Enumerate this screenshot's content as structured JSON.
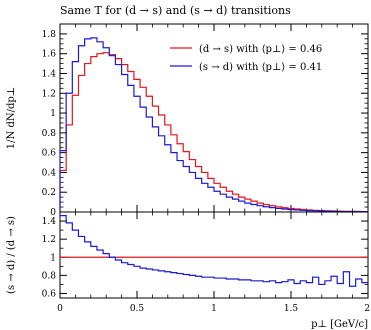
{
  "chart_data": [
    {
      "type": "line",
      "title": "Same T for (d → s) and (s → d) transitions",
      "ylabel": "1/N dN/dp⊥",
      "xlim": [
        0,
        2
      ],
      "ylim": [
        0,
        1.9
      ],
      "yticks": [
        "0",
        "0.2",
        "0.4",
        "0.6",
        "0.8",
        "1",
        "1.2",
        "1.4",
        "1.6",
        "1.8"
      ],
      "legend_position": "top-right",
      "grid": false,
      "x": [
        0.02,
        0.06,
        0.1,
        0.14,
        0.18,
        0.22,
        0.26,
        0.3,
        0.34,
        0.38,
        0.42,
        0.46,
        0.5,
        0.54,
        0.58,
        0.62,
        0.66,
        0.7,
        0.74,
        0.78,
        0.82,
        0.86,
        0.9,
        0.94,
        0.98,
        1.02,
        1.06,
        1.1,
        1.14,
        1.18,
        1.22,
        1.26,
        1.3,
        1.34,
        1.38,
        1.42,
        1.46,
        1.5,
        1.54,
        1.58,
        1.62,
        1.66,
        1.7,
        1.74,
        1.78,
        1.82,
        1.86,
        1.9,
        1.94,
        1.98
      ],
      "series": [
        {
          "name": "(d → s) with ⟨p⊥⟩ = 0.46",
          "color": "#e8141e",
          "values": [
            0.42,
            0.88,
            1.18,
            1.38,
            1.5,
            1.57,
            1.6,
            1.61,
            1.59,
            1.55,
            1.49,
            1.42,
            1.34,
            1.26,
            1.17,
            1.07,
            0.98,
            0.88,
            0.78,
            0.69,
            0.61,
            0.53,
            0.46,
            0.4,
            0.34,
            0.29,
            0.25,
            0.21,
            0.18,
            0.15,
            0.13,
            0.11,
            0.09,
            0.075,
            0.063,
            0.052,
            0.043,
            0.036,
            0.03,
            0.025,
            0.021,
            0.017,
            0.014,
            0.012,
            0.01,
            0.008,
            0.007,
            0.006,
            0.005,
            0.004
          ]
        },
        {
          "name": "(s → d) with ⟨p⊥⟩ = 0.41",
          "color": "#1a1ad6",
          "values": [
            0.62,
            1.2,
            1.52,
            1.68,
            1.75,
            1.76,
            1.72,
            1.66,
            1.58,
            1.49,
            1.39,
            1.28,
            1.17,
            1.06,
            0.96,
            0.86,
            0.77,
            0.68,
            0.6,
            0.52,
            0.46,
            0.4,
            0.34,
            0.29,
            0.25,
            0.21,
            0.18,
            0.15,
            0.13,
            0.11,
            0.09,
            0.076,
            0.064,
            0.053,
            0.044,
            0.036,
            0.03,
            0.025,
            0.021,
            0.017,
            0.014,
            0.012,
            0.01,
            0.008,
            0.0065,
            0.0053,
            0.0043,
            0.0035,
            0.0028,
            0.0022
          ]
        }
      ]
    },
    {
      "type": "line",
      "xlabel": "p⊥ [GeV/c]",
      "ylabel": "(s → d) / (d → s)",
      "xlim": [
        0,
        2
      ],
      "ylim": [
        0.55,
        1.5
      ],
      "xticks": [
        "0",
        "0.5",
        "1",
        "1.5",
        "2"
      ],
      "yticks": [
        "0.6",
        "0.8",
        "1",
        "1.2",
        "1.4"
      ],
      "reference_line": 1,
      "reference_color": "#e8141e",
      "x": [
        0.02,
        0.06,
        0.1,
        0.14,
        0.18,
        0.22,
        0.26,
        0.3,
        0.34,
        0.38,
        0.42,
        0.46,
        0.5,
        0.54,
        0.58,
        0.62,
        0.66,
        0.7,
        0.74,
        0.78,
        0.82,
        0.86,
        0.9,
        0.94,
        0.98,
        1.02,
        1.06,
        1.1,
        1.14,
        1.18,
        1.22,
        1.26,
        1.3,
        1.34,
        1.38,
        1.42,
        1.46,
        1.5,
        1.54,
        1.58,
        1.62,
        1.66,
        1.7,
        1.74,
        1.78,
        1.82,
        1.86,
        1.9,
        1.94,
        1.98
      ],
      "series": [
        {
          "name": "ratio",
          "color": "#1a1ad6",
          "values": [
            1.46,
            1.38,
            1.3,
            1.23,
            1.17,
            1.12,
            1.08,
            1.04,
            1.0,
            0.97,
            0.94,
            0.92,
            0.9,
            0.88,
            0.87,
            0.86,
            0.85,
            0.84,
            0.83,
            0.82,
            0.81,
            0.8,
            0.79,
            0.78,
            0.78,
            0.77,
            0.77,
            0.76,
            0.76,
            0.75,
            0.75,
            0.74,
            0.74,
            0.73,
            0.74,
            0.72,
            0.73,
            0.75,
            0.71,
            0.74,
            0.72,
            0.78,
            0.7,
            0.74,
            0.79,
            0.71,
            0.84,
            0.68,
            0.76,
            0.72
          ]
        }
      ]
    }
  ]
}
